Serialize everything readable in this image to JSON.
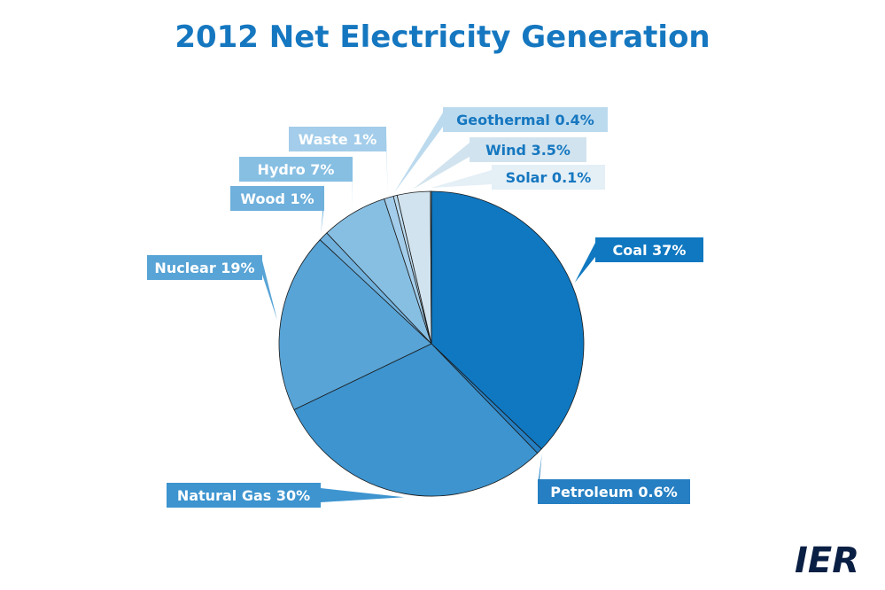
{
  "chart_data": {
    "type": "pie",
    "title": "2012 Net Electricity Generation",
    "slices": [
      {
        "name": "Coal",
        "label": "Coal 37%",
        "value": 37,
        "color": "#0f78c1",
        "text_color": "#ffffff"
      },
      {
        "name": "Petroleum",
        "label": "Petroleum 0.6%",
        "value": 0.6,
        "color": "#257fc2",
        "text_color": "#ffffff"
      },
      {
        "name": "Natural Gas",
        "label": "Natural Gas 30%",
        "value": 30,
        "color": "#3d94cf",
        "text_color": "#ffffff"
      },
      {
        "name": "Nuclear",
        "label": "Nuclear 19%",
        "value": 19,
        "color": "#58a4d6",
        "text_color": "#ffffff"
      },
      {
        "name": "Wood",
        "label": "Wood 1%",
        "value": 1,
        "color": "#6fb0dc",
        "text_color": "#ffffff"
      },
      {
        "name": "Hydro",
        "label": "Hydro 7%",
        "value": 7,
        "color": "#87bfe3",
        "text_color": "#ffffff"
      },
      {
        "name": "Waste",
        "label": "Waste 1%",
        "value": 1,
        "color": "#a3cdea",
        "text_color": "#ffffff"
      },
      {
        "name": "Geothermal",
        "label": "Geothermal 0.4%",
        "value": 0.4,
        "color": "#bcdaee",
        "text_color": "#1577c0"
      },
      {
        "name": "Wind",
        "label": "Wind 3.5%",
        "value": 3.5,
        "color": "#d1e3ee",
        "text_color": "#1577c0"
      },
      {
        "name": "Solar",
        "label": "Solar 0.1%",
        "value": 0.1,
        "color": "#e4eff6",
        "text_color": "#1577c0"
      }
    ]
  },
  "logo": {
    "text": "IER",
    "color": "#0a1f44"
  }
}
